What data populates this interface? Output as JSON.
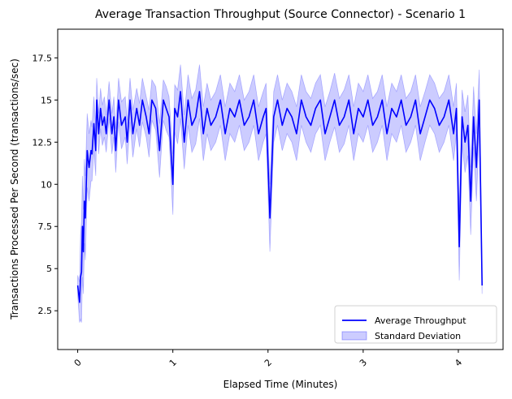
{
  "chart_data": {
    "type": "line",
    "title": "Average Transaction Throughput (Source Connector) - Scenario 1",
    "xlabel": "Elapsed Time (Minutes)",
    "ylabel": "Transactions Processed Per Second (transactions/sec)",
    "xlim": [
      -0.21,
      4.47
    ],
    "ylim": [
      0.2,
      19.2
    ],
    "xticks": [
      0,
      1,
      2,
      3,
      4
    ],
    "xtick_labels": [
      "0",
      "1",
      "2",
      "3",
      "4"
    ],
    "xtick_rotation_deg": 45,
    "yticks": [
      2.5,
      5,
      7.5,
      10,
      12.5,
      15,
      17.5
    ],
    "ytick_labels": [
      "2.5",
      "5",
      "7.5",
      "10",
      "12.5",
      "15",
      "17.5"
    ],
    "grid": false,
    "legend_position": "lower-right",
    "colors": {
      "line": "#0000ff",
      "band": "#0000ff",
      "band_opacity": 0.2
    },
    "series": [
      {
        "name": "Average Throughput",
        "kind": "line"
      },
      {
        "name": "Standard Deviation",
        "kind": "band"
      }
    ],
    "x": [
      0.0,
      0.02,
      0.03,
      0.04,
      0.05,
      0.06,
      0.07,
      0.08,
      0.1,
      0.12,
      0.14,
      0.15,
      0.17,
      0.19,
      0.2,
      0.22,
      0.24,
      0.26,
      0.28,
      0.3,
      0.33,
      0.36,
      0.38,
      0.4,
      0.43,
      0.46,
      0.5,
      0.52,
      0.55,
      0.58,
      0.62,
      0.65,
      0.68,
      0.72,
      0.75,
      0.78,
      0.82,
      0.86,
      0.9,
      0.93,
      0.96,
      1.0,
      1.02,
      1.05,
      1.08,
      1.12,
      1.16,
      1.2,
      1.24,
      1.28,
      1.32,
      1.36,
      1.4,
      1.45,
      1.5,
      1.55,
      1.6,
      1.65,
      1.7,
      1.75,
      1.8,
      1.85,
      1.9,
      1.95,
      1.98,
      2.02,
      2.06,
      2.1,
      2.15,
      2.2,
      2.25,
      2.3,
      2.35,
      2.4,
      2.45,
      2.5,
      2.55,
      2.6,
      2.65,
      2.7,
      2.75,
      2.8,
      2.85,
      2.9,
      2.95,
      3.0,
      3.05,
      3.1,
      3.15,
      3.2,
      3.25,
      3.3,
      3.35,
      3.4,
      3.45,
      3.5,
      3.55,
      3.6,
      3.65,
      3.7,
      3.75,
      3.8,
      3.85,
      3.9,
      3.95,
      3.98,
      4.01,
      4.04,
      4.07,
      4.1,
      4.13,
      4.16,
      4.19,
      4.22,
      4.25
    ],
    "mean": [
      4.0,
      3.0,
      4.5,
      4.8,
      7.5,
      6.0,
      9.0,
      8.0,
      12.0,
      11.0,
      12.0,
      11.8,
      13.6,
      12.0,
      15.0,
      13.0,
      14.5,
      13.5,
      14.0,
      13.0,
      15.0,
      13.0,
      14.0,
      12.0,
      15.0,
      13.5,
      14.0,
      12.5,
      15.0,
      13.0,
      14.5,
      13.5,
      15.0,
      14.0,
      13.0,
      15.0,
      14.5,
      12.0,
      15.0,
      14.5,
      14.0,
      10.0,
      14.5,
      14.0,
      15.5,
      12.5,
      15.0,
      13.5,
      14.0,
      15.5,
      13.0,
      14.5,
      13.5,
      14.0,
      15.0,
      13.0,
      14.5,
      14.0,
      15.0,
      13.5,
      14.0,
      15.0,
      13.0,
      14.0,
      14.5,
      8.0,
      14.0,
      15.0,
      13.5,
      14.5,
      14.0,
      13.0,
      15.0,
      14.0,
      13.5,
      14.5,
      15.0,
      13.0,
      14.0,
      15.0,
      13.5,
      14.0,
      15.0,
      13.0,
      14.5,
      14.0,
      15.0,
      13.5,
      14.0,
      15.0,
      13.0,
      14.5,
      14.0,
      15.0,
      13.5,
      14.0,
      15.0,
      13.0,
      14.0,
      15.0,
      14.5,
      13.5,
      14.0,
      15.0,
      13.0,
      14.5,
      6.3,
      14.0,
      12.5,
      13.5,
      9.0,
      14.0,
      11.0,
      15.0,
      4.0
    ],
    "std": [
      0.6,
      1.2,
      2.5,
      3.0,
      3.0,
      2.5,
      2.5,
      2.5,
      2.2,
      2.0,
      1.8,
      1.6,
      1.6,
      1.5,
      1.3,
      1.2,
      1.2,
      1.2,
      1.2,
      1.1,
      1.1,
      1.2,
      1.2,
      1.3,
      1.3,
      1.4,
      1.2,
      1.3,
      1.3,
      1.4,
      1.2,
      1.3,
      1.3,
      1.2,
      1.4,
      1.2,
      1.3,
      1.6,
      1.2,
      1.3,
      1.2,
      1.8,
      1.4,
      1.6,
      1.6,
      1.6,
      1.5,
      1.6,
      1.6,
      1.6,
      1.6,
      1.5,
      1.5,
      1.5,
      1.5,
      1.6,
      1.5,
      1.5,
      1.5,
      1.5,
      1.5,
      1.5,
      1.6,
      1.5,
      1.5,
      2.0,
      1.5,
      1.5,
      1.5,
      1.5,
      1.5,
      1.6,
      1.5,
      1.5,
      1.6,
      1.5,
      1.5,
      1.6,
      1.5,
      1.6,
      1.6,
      1.6,
      1.5,
      1.6,
      1.5,
      1.5,
      1.5,
      1.6,
      1.5,
      1.5,
      1.6,
      1.5,
      1.5,
      1.5,
      1.6,
      1.5,
      1.5,
      1.6,
      1.5,
      1.5,
      1.5,
      1.6,
      1.5,
      1.5,
      1.6,
      1.5,
      2.0,
      1.6,
      1.8,
      1.8,
      2.0,
      1.8,
      2.0,
      1.8,
      0.5
    ]
  }
}
